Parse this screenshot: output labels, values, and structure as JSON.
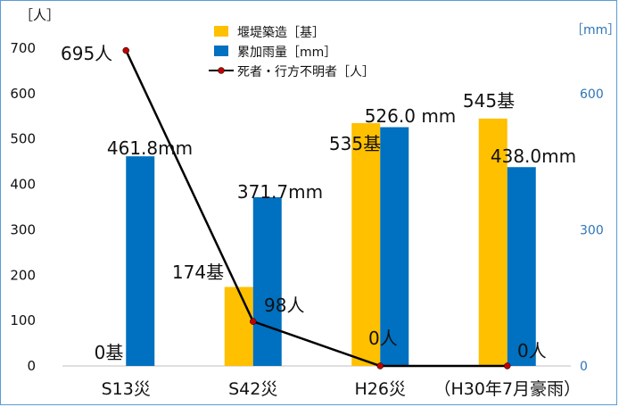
{
  "chart_data": {
    "type": "bar",
    "categories": [
      "S13災",
      "S42災",
      "H26災",
      "（H30年7月豪雨）"
    ],
    "y_left_unit": "［人］",
    "y_right_unit": "［mm］",
    "ylim_left": [
      0,
      700
    ],
    "yticks_left": [
      "0",
      "100",
      "200",
      "300",
      "400",
      "500",
      "600",
      "700"
    ],
    "ylim_right": [
      0,
      700
    ],
    "yticks_right": [
      0,
      300,
      600
    ],
    "grid": false,
    "legend_placement": "top-center",
    "series": [
      {
        "name": "堰堤築造［基］",
        "kind": "bar",
        "axis": "left",
        "color": "#ffc000",
        "values": [
          0,
          174,
          535,
          545
        ],
        "labels": [
          "0基",
          "174基",
          "535基",
          "545基"
        ]
      },
      {
        "name": "累加雨量［mm］",
        "kind": "bar",
        "axis": "right",
        "color": "#0070c0",
        "values": [
          461.8,
          371.7,
          526.0,
          438.0
        ],
        "labels": [
          "461.8mm",
          "371.7mm",
          "526.0 mm",
          "438.0mm"
        ]
      },
      {
        "name": "死者・行方不明者［人］",
        "kind": "line",
        "axis": "left",
        "color": "#000000",
        "marker_color": "#c00000",
        "values": [
          695,
          98,
          0,
          0
        ],
        "labels": [
          "695人",
          "98人",
          "0人",
          "0人"
        ]
      }
    ]
  }
}
